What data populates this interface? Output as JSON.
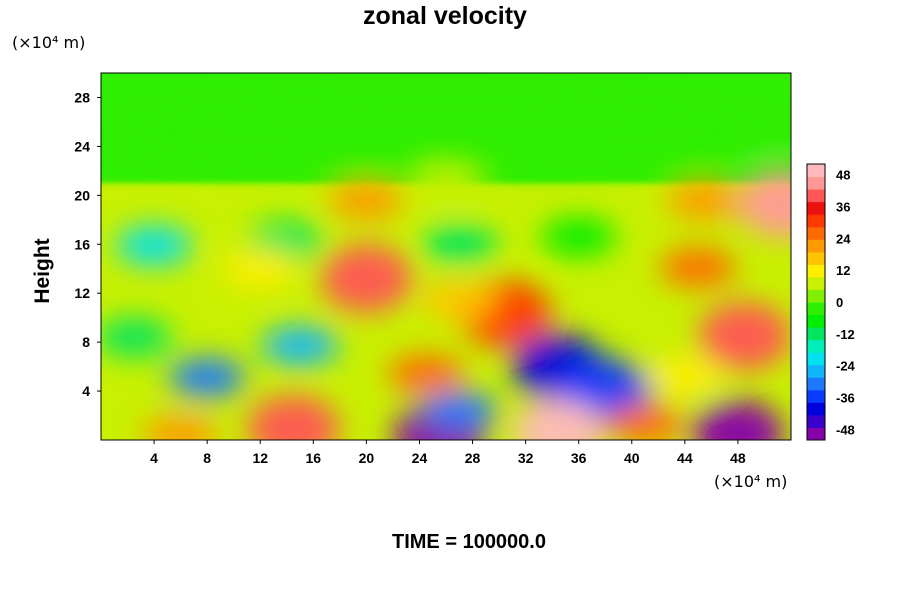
{
  "chart_data": {
    "type": "heatmap",
    "title": "zonal velocity",
    "ylabel": "Height",
    "xlabel": "",
    "x_unit": "(×10⁴ m)",
    "y_unit": "(×10⁴ m)",
    "footer": "TIME = 100000.0",
    "xlim": [
      0,
      52
    ],
    "ylim": [
      0,
      30
    ],
    "x_ticks": [
      4,
      8,
      12,
      16,
      20,
      24,
      28,
      32,
      36,
      40,
      44,
      48
    ],
    "y_ticks": [
      4,
      8,
      12,
      16,
      20,
      24,
      28
    ],
    "colorbar": {
      "range": [
        -52,
        52
      ],
      "tick_values": [
        -48,
        -36,
        -24,
        -12,
        0,
        12,
        24,
        36,
        48
      ],
      "tick_labels": [
        "-48",
        "-36",
        "-24",
        "-12",
        "0",
        "12",
        "24",
        "36",
        "48"
      ],
      "colors": [
        "#8800aa",
        "#3a00cc",
        "#0000dd",
        "#0a3cff",
        "#1e78ff",
        "#10b4ff",
        "#00e0ee",
        "#00eebb",
        "#00e660",
        "#00ee00",
        "#30ee00",
        "#80f000",
        "#c8f000",
        "#ffee00",
        "#ffc400",
        "#ff9a00",
        "#ff6a00",
        "#ff3800",
        "#ee1010",
        "#ff5555",
        "#ff9999",
        "#ffbbbb"
      ]
    },
    "features": [
      {
        "x": 26,
        "y": 25,
        "value": -4
      },
      {
        "x": 26,
        "y": 20.8,
        "value": 7
      },
      {
        "x": 20,
        "y": 19.6,
        "value": 22
      },
      {
        "x": 45.5,
        "y": 19.6,
        "value": 20
      },
      {
        "x": 51.5,
        "y": 19.3,
        "value": 45
      },
      {
        "x": 4,
        "y": 15.9,
        "value": -22
      },
      {
        "x": 14,
        "y": 16.3,
        "value": -14
      },
      {
        "x": 27,
        "y": 16,
        "value": -10
      },
      {
        "x": 36,
        "y": 16.6,
        "value": -6
      },
      {
        "x": 20,
        "y": 13.2,
        "value": 38
      },
      {
        "x": 12,
        "y": 14,
        "value": 14
      },
      {
        "x": 45,
        "y": 14.1,
        "value": 24
      },
      {
        "x": 30.5,
        "y": 10.3,
        "value": 32
      },
      {
        "x": 27,
        "y": 11.4,
        "value": 18
      },
      {
        "x": 15,
        "y": 7.7,
        "value": -28
      },
      {
        "x": 2.5,
        "y": 8.4,
        "value": -14
      },
      {
        "x": 8,
        "y": 5.1,
        "value": -30
      },
      {
        "x": 34.5,
        "y": 5.9,
        "value": -42
      },
      {
        "x": 38,
        "y": 3.9,
        "value": -36
      },
      {
        "x": 48.5,
        "y": 8.5,
        "value": 38
      },
      {
        "x": 44,
        "y": 5.2,
        "value": 10
      },
      {
        "x": 24.5,
        "y": 5.4,
        "value": 24
      },
      {
        "x": 14.5,
        "y": 0.9,
        "value": 38
      },
      {
        "x": 6,
        "y": 0.4,
        "value": 20
      },
      {
        "x": 34.5,
        "y": 0.6,
        "value": 54
      },
      {
        "x": 25.5,
        "y": 0.3,
        "value": -50
      },
      {
        "x": 48,
        "y": 0.5,
        "value": -48
      },
      {
        "x": 27,
        "y": 2.4,
        "value": -30
      },
      {
        "x": 41,
        "y": 1.3,
        "value": 26
      }
    ]
  }
}
